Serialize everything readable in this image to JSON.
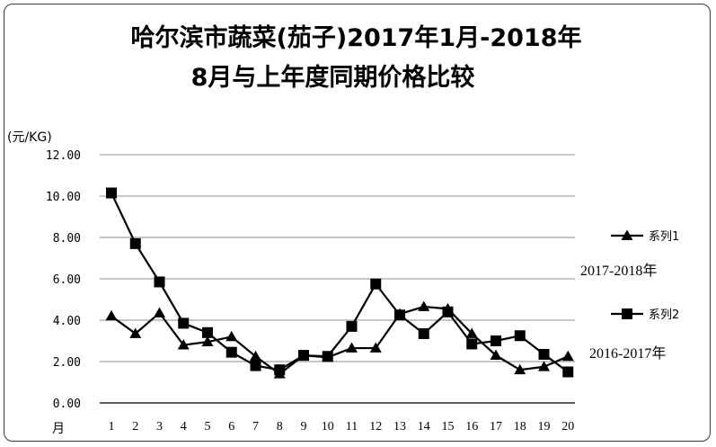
{
  "chart_data": {
    "type": "line",
    "title_line1": "哈尔滨市蔬菜(茄子)2017年1月-2018年",
    "title_line2": "8月与上年度同期价格比较",
    "ylabel": "(元/KG)",
    "xlabel": "月",
    "ylim": [
      0,
      12
    ],
    "y_ticks": [
      "0.00",
      "2.00",
      "4.00",
      "6.00",
      "8.00",
      "10.00",
      "12.00"
    ],
    "y_tick_values": [
      0,
      2,
      4,
      6,
      8,
      10,
      12
    ],
    "grid": true,
    "x": [
      1,
      2,
      3,
      4,
      5,
      6,
      7,
      8,
      9,
      10,
      11,
      12,
      13,
      14,
      15,
      16,
      17,
      18,
      19,
      20
    ],
    "series": [
      {
        "name": "系列1",
        "marker": "triangle",
        "color": "#000000",
        "values": [
          4.2,
          3.35,
          4.35,
          2.8,
          2.95,
          3.2,
          2.25,
          1.4,
          2.3,
          2.2,
          2.65,
          2.65,
          4.3,
          4.65,
          4.55,
          3.35,
          2.3,
          1.6,
          1.75,
          2.25
        ]
      },
      {
        "name": "系列2",
        "marker": "square",
        "color": "#000000",
        "values": [
          10.15,
          7.7,
          5.85,
          3.85,
          3.4,
          2.45,
          1.8,
          1.6,
          2.3,
          2.25,
          3.7,
          5.75,
          4.25,
          3.35,
          4.4,
          2.85,
          3.0,
          3.25,
          2.35,
          1.5
        ]
      }
    ],
    "legend_placement": "right",
    "annotations": [
      "2017-2018年",
      "2016-2017年"
    ]
  }
}
